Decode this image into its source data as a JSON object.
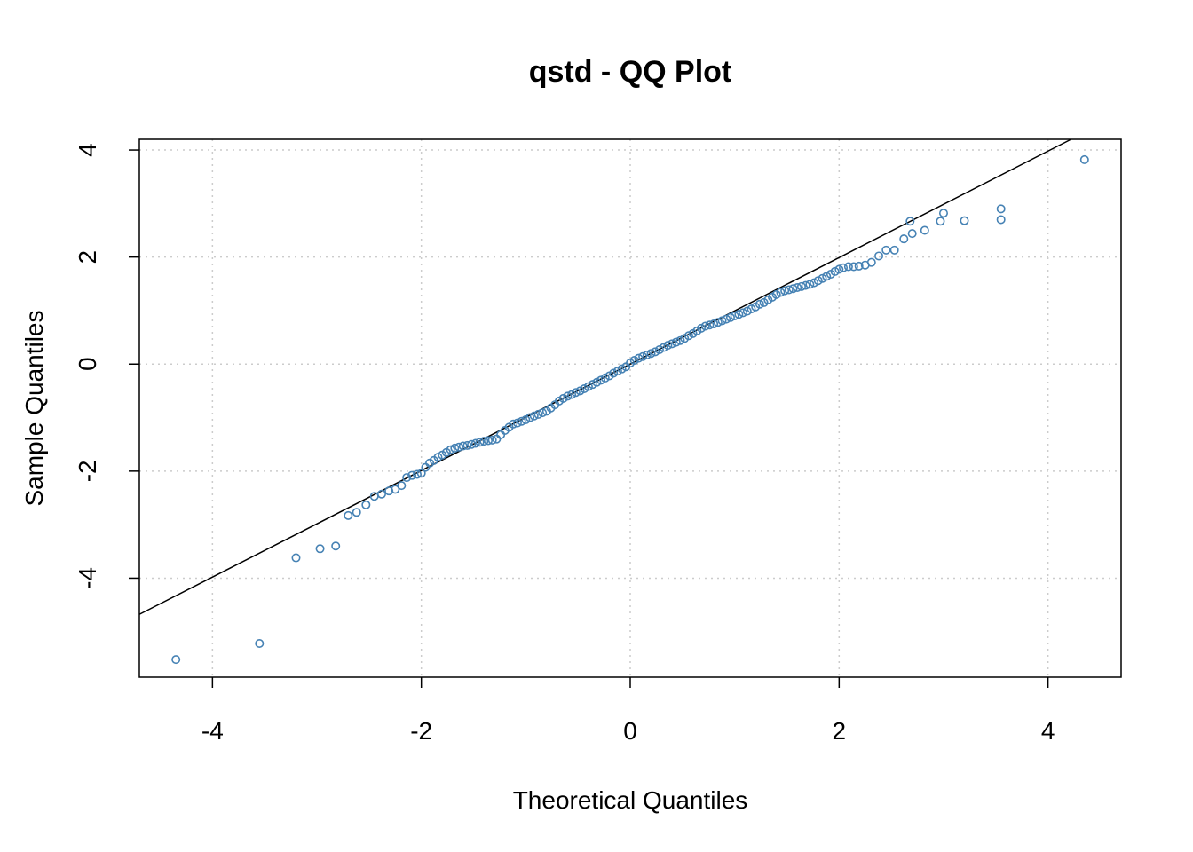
{
  "chart_data": {
    "type": "scatter",
    "title": "qstd - QQ Plot",
    "xlabel": "Theoretical Quantiles",
    "ylabel": "Sample Quantiles",
    "xlim": [
      -4.7,
      4.7
    ],
    "ylim": [
      -5.85,
      4.2
    ],
    "xticks": [
      -4,
      -2,
      0,
      2,
      4
    ],
    "yticks": [
      -4,
      -2,
      0,
      2,
      4
    ],
    "xtick_labels": [
      "-4",
      "-2",
      "0",
      "2",
      "4"
    ],
    "ytick_labels": [
      "-4",
      "-2",
      "0",
      "2",
      "4"
    ],
    "grid": true,
    "point_color": "#4682b4",
    "line_color": "#000000",
    "reference_line": {
      "intercept": 0.0,
      "slope": 0.995
    },
    "series": [
      {
        "points": [
          [
            -4.35,
            -5.52
          ],
          [
            -3.55,
            -5.22
          ],
          [
            -3.2,
            -3.62
          ],
          [
            -2.97,
            -3.45
          ],
          [
            -2.82,
            -3.4
          ],
          [
            -2.7,
            -2.83
          ],
          [
            -2.62,
            -2.77
          ],
          [
            -2.53,
            -2.63
          ],
          [
            -2.45,
            -2.47
          ],
          [
            -2.38,
            -2.43
          ],
          [
            -2.31,
            -2.37
          ],
          [
            -2.25,
            -2.34
          ],
          [
            -2.19,
            -2.27
          ],
          [
            -2.14,
            -2.12
          ],
          [
            -2.09,
            -2.08
          ],
          [
            -2.04,
            -2.06
          ],
          [
            -2.0,
            -2.04
          ],
          [
            -1.96,
            -1.93
          ],
          [
            -1.92,
            -1.85
          ],
          [
            -1.88,
            -1.8
          ],
          [
            -1.84,
            -1.74
          ],
          [
            -1.8,
            -1.7
          ],
          [
            -1.76,
            -1.65
          ],
          [
            -1.72,
            -1.6
          ],
          [
            -1.68,
            -1.57
          ],
          [
            -1.64,
            -1.55
          ],
          [
            -1.6,
            -1.53
          ],
          [
            -1.56,
            -1.52
          ],
          [
            -1.52,
            -1.5
          ],
          [
            -1.48,
            -1.48
          ],
          [
            -1.44,
            -1.46
          ],
          [
            -1.4,
            -1.44
          ],
          [
            -1.36,
            -1.43
          ],
          [
            -1.32,
            -1.42
          ],
          [
            -1.28,
            -1.4
          ],
          [
            -1.24,
            -1.32
          ],
          [
            -1.2,
            -1.24
          ],
          [
            -1.16,
            -1.18
          ],
          [
            -1.12,
            -1.12
          ],
          [
            -1.08,
            -1.1
          ],
          [
            -1.04,
            -1.07
          ],
          [
            -1.0,
            -1.04
          ],
          [
            -0.96,
            -1.0
          ],
          [
            -0.92,
            -0.97
          ],
          [
            -0.88,
            -0.94
          ],
          [
            -0.84,
            -0.91
          ],
          [
            -0.8,
            -0.88
          ],
          [
            -0.76,
            -0.82
          ],
          [
            -0.72,
            -0.76
          ],
          [
            -0.68,
            -0.69
          ],
          [
            -0.64,
            -0.64
          ],
          [
            -0.6,
            -0.6
          ],
          [
            -0.56,
            -0.57
          ],
          [
            -0.52,
            -0.53
          ],
          [
            -0.48,
            -0.5
          ],
          [
            -0.44,
            -0.46
          ],
          [
            -0.4,
            -0.42
          ],
          [
            -0.36,
            -0.38
          ],
          [
            -0.32,
            -0.34
          ],
          [
            -0.28,
            -0.3
          ],
          [
            -0.24,
            -0.26
          ],
          [
            -0.2,
            -0.22
          ],
          [
            -0.16,
            -0.17
          ],
          [
            -0.12,
            -0.13
          ],
          [
            -0.08,
            -0.09
          ],
          [
            -0.04,
            -0.05
          ],
          [
            0.0,
            0.02
          ],
          [
            0.04,
            0.07
          ],
          [
            0.08,
            0.11
          ],
          [
            0.12,
            0.14
          ],
          [
            0.16,
            0.17
          ],
          [
            0.2,
            0.2
          ],
          [
            0.24,
            0.23
          ],
          [
            0.28,
            0.27
          ],
          [
            0.32,
            0.31
          ],
          [
            0.36,
            0.35
          ],
          [
            0.4,
            0.38
          ],
          [
            0.44,
            0.41
          ],
          [
            0.48,
            0.44
          ],
          [
            0.52,
            0.48
          ],
          [
            0.56,
            0.53
          ],
          [
            0.6,
            0.57
          ],
          [
            0.64,
            0.62
          ],
          [
            0.68,
            0.67
          ],
          [
            0.72,
            0.71
          ],
          [
            0.76,
            0.73
          ],
          [
            0.8,
            0.75
          ],
          [
            0.84,
            0.78
          ],
          [
            0.88,
            0.81
          ],
          [
            0.92,
            0.84
          ],
          [
            0.96,
            0.87
          ],
          [
            1.0,
            0.9
          ],
          [
            1.04,
            0.93
          ],
          [
            1.08,
            0.96
          ],
          [
            1.12,
            0.99
          ],
          [
            1.16,
            1.03
          ],
          [
            1.2,
            1.07
          ],
          [
            1.24,
            1.12
          ],
          [
            1.28,
            1.15
          ],
          [
            1.32,
            1.2
          ],
          [
            1.36,
            1.25
          ],
          [
            1.4,
            1.3
          ],
          [
            1.44,
            1.34
          ],
          [
            1.48,
            1.37
          ],
          [
            1.52,
            1.39
          ],
          [
            1.56,
            1.41
          ],
          [
            1.6,
            1.43
          ],
          [
            1.64,
            1.45
          ],
          [
            1.68,
            1.47
          ],
          [
            1.72,
            1.49
          ],
          [
            1.76,
            1.52
          ],
          [
            1.8,
            1.56
          ],
          [
            1.84,
            1.6
          ],
          [
            1.88,
            1.64
          ],
          [
            1.92,
            1.68
          ],
          [
            1.96,
            1.73
          ],
          [
            2.0,
            1.77
          ],
          [
            2.04,
            1.8
          ],
          [
            2.09,
            1.82
          ],
          [
            2.14,
            1.82
          ],
          [
            2.19,
            1.83
          ],
          [
            2.25,
            1.85
          ],
          [
            2.31,
            1.9
          ],
          [
            2.38,
            2.02
          ],
          [
            2.45,
            2.13
          ],
          [
            2.53,
            2.13
          ],
          [
            2.62,
            2.34
          ],
          [
            2.7,
            2.44
          ],
          [
            2.82,
            2.5
          ],
          [
            2.97,
            2.67
          ],
          [
            3.2,
            2.68
          ],
          [
            3.55,
            2.7
          ],
          [
            2.68,
            2.67
          ],
          [
            3.0,
            2.82
          ],
          [
            3.55,
            2.9
          ],
          [
            4.35,
            3.82
          ]
        ]
      }
    ]
  }
}
